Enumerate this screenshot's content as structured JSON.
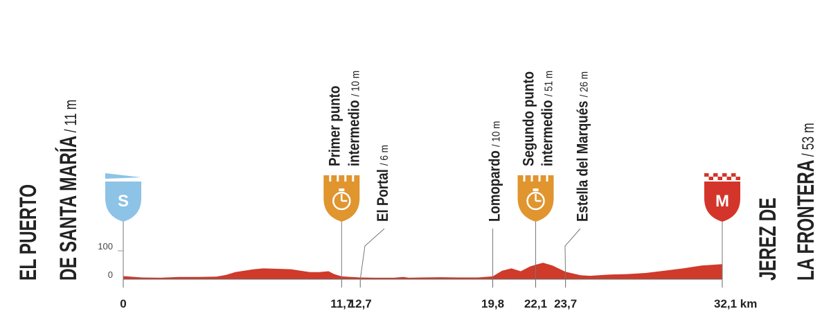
{
  "chart_data": {
    "type": "area",
    "color": "#cf3a2a",
    "x": [
      0,
      1,
      2,
      3,
      4,
      5,
      5.5,
      6,
      7,
      7.5,
      8,
      9,
      9.5,
      10,
      10.5,
      11,
      11.3,
      11.7,
      12.2,
      12.7,
      13.5,
      14.5,
      15,
      15.3,
      16,
      17,
      18,
      19,
      19.8,
      20.3,
      20.8,
      21.3,
      21.8,
      22.1,
      22.5,
      23,
      23.7,
      24.5,
      25,
      26,
      27,
      28,
      29,
      30,
      31,
      32.1
    ],
    "values": [
      11,
      6,
      5,
      8,
      8,
      9,
      15,
      25,
      35,
      38,
      37,
      35,
      30,
      25,
      25,
      28,
      18,
      10,
      8,
      6,
      5,
      5,
      8,
      5,
      6,
      7,
      6,
      6,
      10,
      30,
      38,
      28,
      45,
      51,
      58,
      48,
      26,
      14,
      12,
      16,
      18,
      22,
      30,
      38,
      48,
      53
    ],
    "xlim": [
      0,
      32.1
    ],
    "xticks": [
      0,
      {
        "value": 11.7,
        "label": "11,7"
      },
      {
        "value": 12.7,
        "label": "12,7"
      },
      {
        "value": 19.8,
        "label": "19,8"
      },
      {
        "value": 22.1,
        "label": "22,1"
      },
      {
        "value": 23.7,
        "label": "23,7"
      },
      {
        "value": 32.1,
        "label": "32,1 km"
      }
    ],
    "ylim": [
      0,
      100
    ],
    "yticks": [
      0,
      100
    ],
    "waypoints": [
      {
        "lines": [
          "EL PUERTO",
          "DE SANTA MARÍA"
        ],
        "elevation": "/ 11 m",
        "marker": "start",
        "icon": "S"
      },
      {
        "lines": [
          "Primer punto",
          "intermedio"
        ],
        "elevation": "/ 10 m",
        "marker": "sprint"
      },
      {
        "lines": [
          "El Portal"
        ],
        "elevation": "/ 6 m"
      },
      {
        "lines": [
          "Lomopardo"
        ],
        "elevation": "/ 10 m"
      },
      {
        "lines": [
          "Segundo punto",
          "intermedio"
        ],
        "elevation": "/ 51 m",
        "marker": "sprint"
      },
      {
        "lines": [
          "Estella del Marqués"
        ],
        "elevation": "/ 26 m"
      },
      {
        "lines": [
          "JEREZ DE",
          "LA FRONTERA"
        ],
        "elevation": "/ 53 m",
        "marker": "finish",
        "icon": "M"
      }
    ]
  }
}
